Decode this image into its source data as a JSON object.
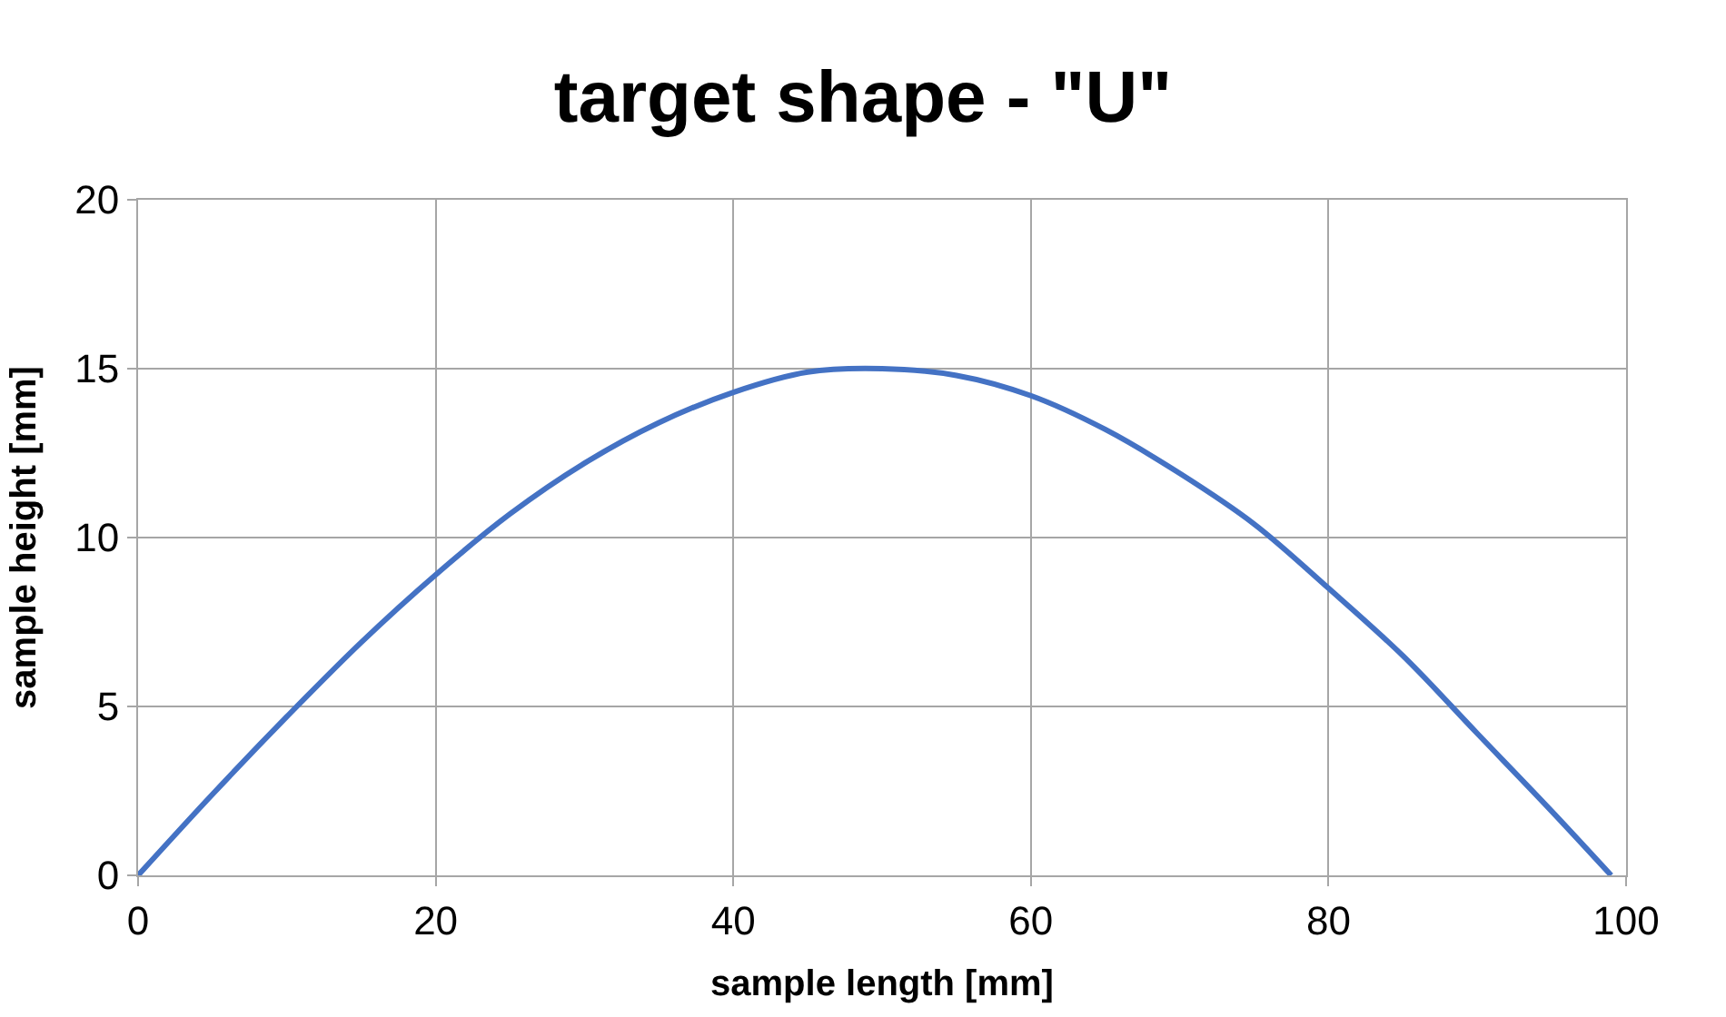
{
  "chart_data": {
    "type": "line",
    "title": "target shape - \"U\"",
    "xlabel": "sample length [mm]",
    "ylabel": "sample height [mm]",
    "x": [
      0,
      5,
      10,
      15,
      20,
      25,
      30,
      35,
      40,
      45,
      50,
      55,
      60,
      65,
      70,
      75,
      80,
      85,
      90,
      95,
      99
    ],
    "series": [
      {
        "color": "#4472c4",
        "values": [
          0,
          2.4,
          4.7,
          6.9,
          8.9,
          10.7,
          12.2,
          13.4,
          14.3,
          14.9,
          15,
          14.8,
          14.2,
          13.2,
          11.9,
          10.4,
          8.5,
          6.5,
          4.2,
          1.9,
          0
        ]
      }
    ],
    "xlim": [
      0,
      100
    ],
    "xticks": [
      0,
      20,
      40,
      60,
      80,
      100
    ],
    "ylim": [
      0,
      20
    ],
    "yticks": [
      0,
      5,
      10,
      15,
      20
    ],
    "grid": true,
    "marker": "none",
    "line_style": "solid"
  }
}
